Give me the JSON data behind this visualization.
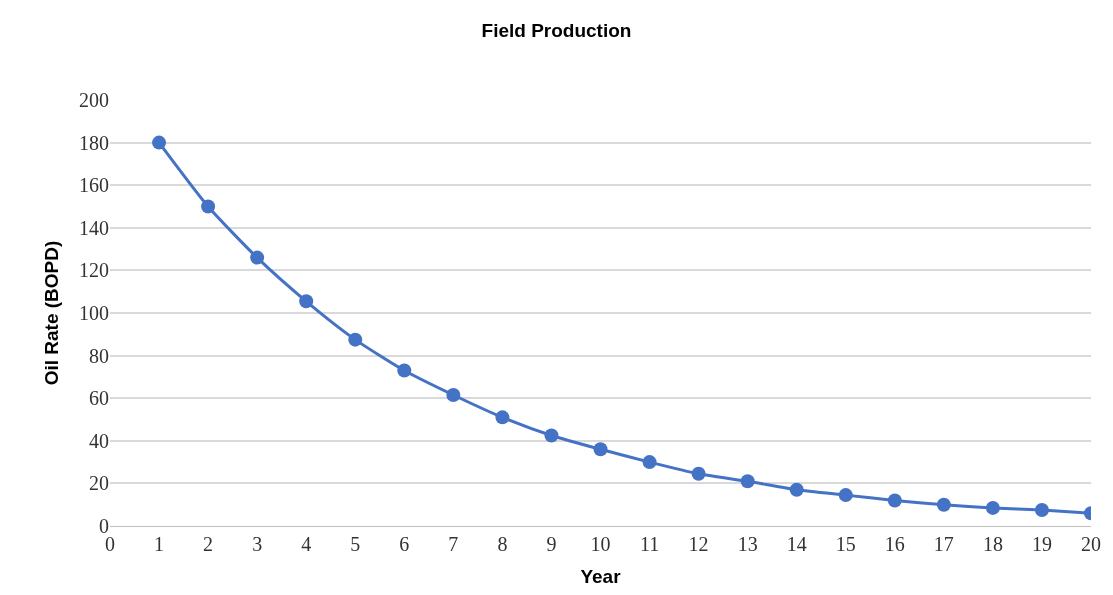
{
  "chart_data": {
    "type": "line",
    "title": "Field Production",
    "xlabel": "Year",
    "ylabel": "Oil Rate (BOPD)",
    "x": [
      1,
      2,
      3,
      4,
      5,
      6,
      7,
      8,
      9,
      10,
      11,
      12,
      13,
      14,
      15,
      16,
      17,
      18,
      19,
      20
    ],
    "series": [
      {
        "color": "#4472c4",
        "values": [
          180,
          150,
          126,
          105.5,
          87.5,
          73,
          61.5,
          51,
          42.5,
          36,
          30,
          24.5,
          21,
          17,
          14.5,
          12,
          10,
          8.5,
          7.5,
          6
        ]
      }
    ],
    "xlim": [
      0,
      20
    ],
    "xticks": [
      0,
      1,
      2,
      3,
      4,
      5,
      6,
      7,
      8,
      9,
      10,
      11,
      12,
      13,
      14,
      15,
      16,
      17,
      18,
      19,
      20
    ],
    "ylim": [
      0,
      200
    ],
    "yticks": [
      0,
      20,
      40,
      60,
      80,
      100,
      120,
      140,
      160,
      180,
      200
    ],
    "grid": "y",
    "marker": "circle",
    "line_style": "solid",
    "legend": false
  }
}
